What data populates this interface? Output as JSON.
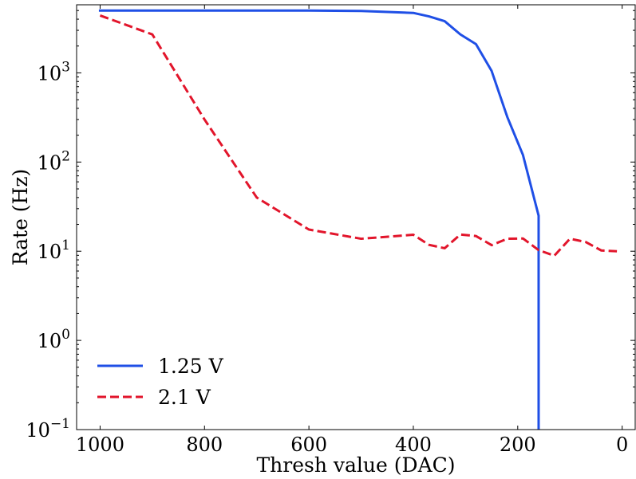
{
  "chart_data": {
    "type": "line",
    "title": "",
    "xlabel": "Thresh value (DAC)",
    "ylabel": "Rate (Hz)",
    "x_scale": "linear",
    "x_reversed": true,
    "xlim": [
      -25,
      1045
    ],
    "y_scale": "log",
    "ylim": [
      0.1,
      5800
    ],
    "x_ticks": [
      1000,
      800,
      600,
      400,
      200,
      0
    ],
    "x_tick_labels": [
      "1000",
      "800",
      "600",
      "400",
      "200",
      "0"
    ],
    "y_ticks": [
      0.1,
      1,
      10,
      100,
      1000
    ],
    "y_tick_labels": [
      {
        "base": "10",
        "exp": "−1"
      },
      {
        "base": "10",
        "exp": "0"
      },
      {
        "base": "10",
        "exp": "1"
      },
      {
        "base": "10",
        "exp": "2"
      },
      {
        "base": "10",
        "exp": "3"
      }
    ],
    "legend_position": "lower-left",
    "grid": false,
    "series": [
      {
        "name": "1.25 V",
        "color": "#1f4fe6",
        "dash": "solid",
        "x": [
          1000,
          900,
          800,
          700,
          600,
          500,
          400,
          370,
          340,
          310,
          280,
          250,
          220,
          190,
          160,
          160
        ],
        "y": [
          5000,
          5000,
          5000,
          5000,
          5000,
          4950,
          4700,
          4300,
          3800,
          2700,
          2100,
          1050,
          320,
          120,
          25,
          0.1
        ]
      },
      {
        "name": "2.1 V",
        "color": "#e2152b",
        "dash": "dashed",
        "x": [
          1000,
          900,
          800,
          700,
          600,
          500,
          400,
          370,
          340,
          310,
          280,
          250,
          220,
          190,
          160,
          130,
          100,
          70,
          40,
          10
        ],
        "y": [
          4400,
          2700,
          300,
          40,
          17.5,
          13.8,
          15.3,
          11.8,
          10.8,
          15.4,
          14.8,
          11.7,
          13.8,
          13.9,
          10.3,
          8.9,
          13.8,
          12.7,
          10.2,
          10
        ]
      }
    ]
  }
}
